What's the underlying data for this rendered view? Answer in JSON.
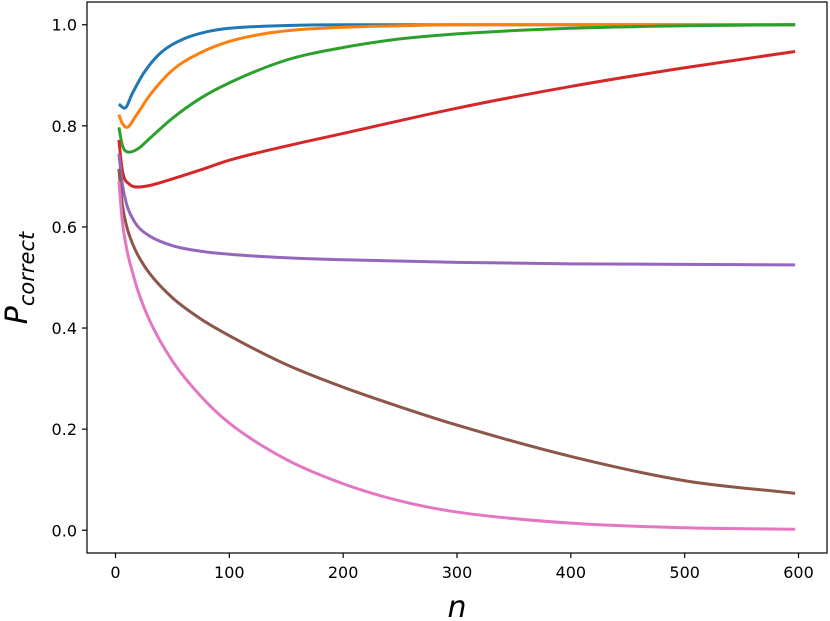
{
  "chart_data": {
    "type": "line",
    "title": "",
    "xlabel": "n",
    "ylabel_main": "P",
    "ylabel_sub": "correct",
    "xlim": [
      -25,
      625
    ],
    "ylim": [
      -0.045,
      1.045
    ],
    "xticks": [
      0,
      100,
      200,
      300,
      400,
      500,
      600
    ],
    "xtick_labels": [
      "0",
      "100",
      "200",
      "300",
      "400",
      "500",
      "600"
    ],
    "yticks": [
      0.0,
      0.2,
      0.4,
      0.6,
      0.8,
      1.0
    ],
    "ytick_labels": [
      "0.0",
      "0.2",
      "0.4",
      "0.6",
      "0.8",
      "1.0"
    ],
    "grid": false,
    "legend": "none",
    "series": [
      {
        "color": "#1f77b4",
        "x": [
          3,
          8,
          15,
          25,
          40,
          60,
          80,
          100,
          130,
          160,
          200,
          250,
          300,
          400,
          500,
          597
        ],
        "y": [
          0.843,
          0.835,
          0.865,
          0.905,
          0.945,
          0.972,
          0.986,
          0.993,
          0.997,
          0.999,
          1.0,
          1.0,
          1.0,
          1.0,
          1.0,
          1.0
        ]
      },
      {
        "color": "#ff7f0e",
        "x": [
          3,
          6,
          10,
          18,
          30,
          50,
          75,
          100,
          130,
          160,
          200,
          250,
          300,
          400,
          500,
          597
        ],
        "y": [
          0.822,
          0.805,
          0.797,
          0.82,
          0.86,
          0.91,
          0.945,
          0.967,
          0.982,
          0.99,
          0.995,
          0.998,
          1.0,
          1.0,
          1.0,
          1.0
        ]
      },
      {
        "color": "#2ca02c",
        "x": [
          3,
          6,
          12,
          20,
          30,
          50,
          75,
          100,
          150,
          200,
          250,
          300,
          400,
          500,
          597
        ],
        "y": [
          0.797,
          0.762,
          0.748,
          0.755,
          0.775,
          0.815,
          0.855,
          0.885,
          0.93,
          0.955,
          0.972,
          0.982,
          0.993,
          0.998,
          1.0
        ]
      },
      {
        "color": "#d62728",
        "x": [
          3,
          6,
          12,
          20,
          30,
          50,
          75,
          100,
          150,
          200,
          300,
          400,
          500,
          597
        ],
        "y": [
          0.772,
          0.712,
          0.685,
          0.679,
          0.682,
          0.695,
          0.713,
          0.732,
          0.76,
          0.785,
          0.835,
          0.878,
          0.915,
          0.947
        ]
      },
      {
        "color": "#9467bd",
        "x": [
          3,
          6,
          10,
          15,
          20,
          30,
          50,
          75,
          100,
          150,
          200,
          300,
          400,
          500,
          597
        ],
        "y": [
          0.745,
          0.685,
          0.643,
          0.617,
          0.6,
          0.582,
          0.563,
          0.552,
          0.546,
          0.539,
          0.535,
          0.53,
          0.527,
          0.526,
          0.525
        ]
      },
      {
        "color": "#8c564b",
        "x": [
          3,
          6,
          10,
          15,
          20,
          30,
          50,
          75,
          100,
          150,
          200,
          250,
          300,
          400,
          500,
          597
        ],
        "y": [
          0.715,
          0.645,
          0.6,
          0.567,
          0.543,
          0.508,
          0.46,
          0.418,
          0.385,
          0.328,
          0.283,
          0.244,
          0.208,
          0.146,
          0.098,
          0.073
        ]
      },
      {
        "color": "#e377c2",
        "x": [
          3,
          6,
          10,
          15,
          20,
          30,
          50,
          75,
          100,
          150,
          200,
          250,
          300,
          400,
          500,
          597
        ],
        "y": [
          0.69,
          0.612,
          0.555,
          0.51,
          0.472,
          0.415,
          0.335,
          0.265,
          0.212,
          0.14,
          0.092,
          0.058,
          0.036,
          0.014,
          0.005,
          0.002
        ]
      }
    ]
  }
}
